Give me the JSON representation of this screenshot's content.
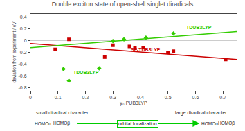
{
  "chart_data": {
    "type": "scatter",
    "title": "Double exciton state of open-shell singlet diradicals",
    "xlabel": "y₀ PUB3LYP",
    "ylabel": "deviation from experiment / eV",
    "xlim": [
      0,
      0.75
    ],
    "ylim": [
      -0.85,
      0.45
    ],
    "xticks": [
      0,
      0.1,
      0.2,
      0.3,
      0.4,
      0.5,
      0.6,
      0.7
    ],
    "yticks": [
      -0.8,
      -0.6,
      -0.4,
      -0.2,
      0.0,
      0.2,
      0.4
    ],
    "grid": false,
    "series": [
      {
        "type": "line",
        "color": "#cc0000",
        "x": [
          0.0,
          0.75
        ],
        "values": [
          -0.05,
          -0.32
        ]
      },
      {
        "type": "line",
        "color": "#33cc00",
        "x": [
          0.0,
          0.75
        ],
        "values": [
          -0.12,
          0.15
        ]
      },
      {
        "type": "scatter",
        "color": "#cc0000",
        "marker": "square",
        "x": [
          0.09,
          0.14,
          0.27,
          0.3,
          0.36,
          0.38,
          0.41,
          0.5,
          0.52,
          0.71
        ],
        "values": [
          -0.15,
          0.02,
          -0.28,
          -0.08,
          -0.1,
          -0.13,
          -0.12,
          -0.2,
          -0.18,
          -0.32
        ]
      },
      {
        "type": "scatter",
        "color": "#33cc00",
        "marker": "diamond",
        "x": [
          0.12,
          0.14,
          0.25,
          0.3,
          0.34,
          0.42,
          0.52
        ],
        "values": [
          -0.48,
          -0.68,
          -0.47,
          -0.01,
          0.02,
          0.05,
          0.12
        ]
      }
    ],
    "annotations": [
      {
        "text": "SF-TDB3LYP",
        "x": 0.36,
        "y": -0.22,
        "color": "#cc0000"
      },
      {
        "text": "TDUB3LYP",
        "x": 0.56,
        "y": 0.16,
        "color": "#33cc00"
      },
      {
        "text": "TDUB3LYP",
        "x": 0.15,
        "y": -0.6,
        "color": "#33cc00"
      },
      {
        "text": "small diradical character"
      },
      {
        "text": "large diradical character"
      },
      {
        "text": "orbital localization",
        "color": "#00cc00"
      },
      {
        "text": "HOMOα"
      },
      {
        "text": "HOMOβ"
      },
      {
        "text": "HOMOα"
      },
      {
        "text": "HOMOβ"
      }
    ]
  }
}
